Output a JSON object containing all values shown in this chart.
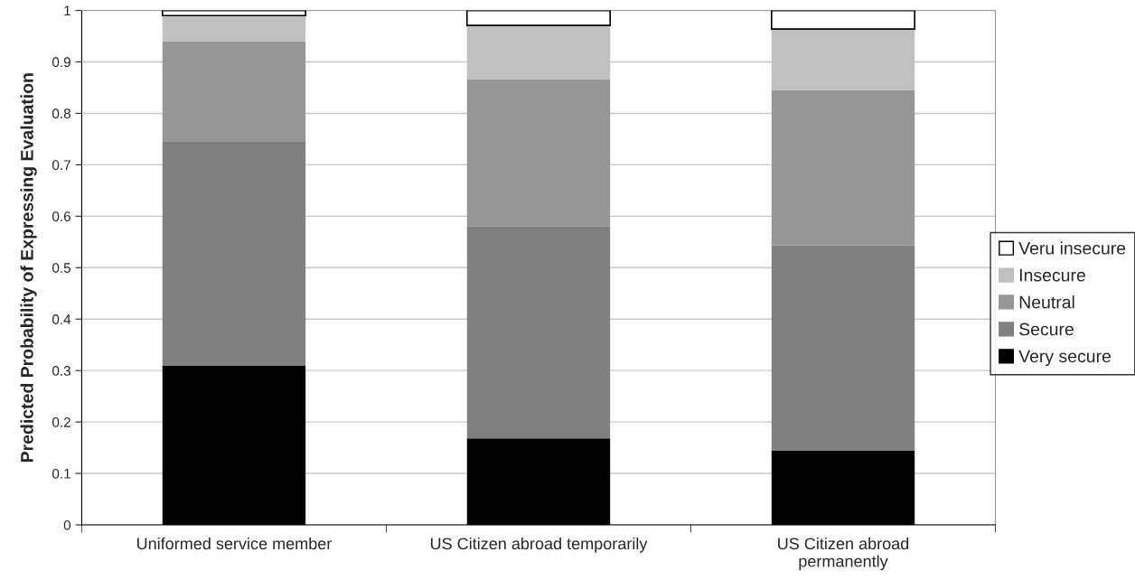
{
  "chart_data": {
    "type": "bar",
    "stacked": true,
    "ylabel": "Predicted Probability of Expressing Evaluation",
    "categories": [
      "Uniformed service member",
      "US Citizen abroad temporarily",
      "US Citizen abroad\npermanently"
    ],
    "series": [
      {
        "name": "Very secure",
        "color": "#000000",
        "values": [
          0.309,
          0.168,
          0.145
        ]
      },
      {
        "name": "Secure",
        "color": "#808080",
        "values": [
          0.437,
          0.413,
          0.398
        ]
      },
      {
        "name": "Neutral",
        "color": "#969696",
        "values": [
          0.194,
          0.285,
          0.302
        ]
      },
      {
        "name": "Insecure",
        "color": "#c0c0c0",
        "values": [
          0.05,
          0.105,
          0.119
        ]
      },
      {
        "name": "Veru insecure",
        "color": "#ffffff",
        "values": [
          0.01,
          0.029,
          0.036
        ]
      }
    ],
    "ylim": [
      0,
      1
    ],
    "yticks": [
      0,
      0.1,
      0.2,
      0.3,
      0.4,
      0.5,
      0.6,
      0.7,
      0.8,
      0.9,
      1
    ],
    "grid": "y",
    "legend": "right"
  }
}
